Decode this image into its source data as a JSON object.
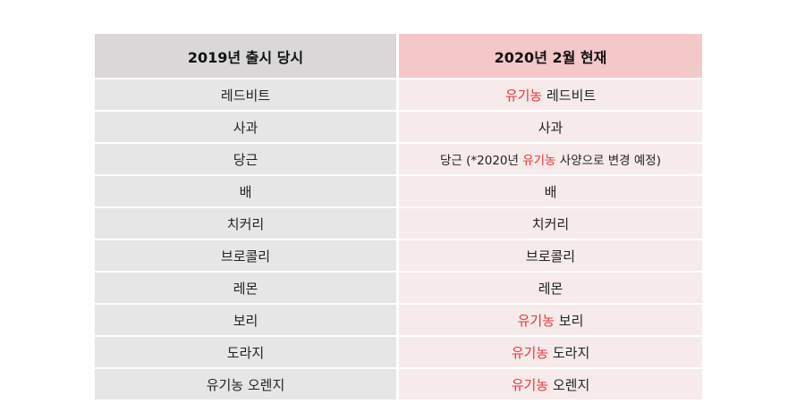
{
  "table": {
    "headers": {
      "left": "2019년 출시 당시",
      "right": "2020년 2월 현재"
    },
    "rows": [
      {
        "left": "레드비트",
        "right_prefix": "",
        "right_organic": "유기농",
        "right_text": " 레드비트",
        "right_suffix": "",
        "right_tail": ""
      },
      {
        "left": "사과",
        "right_prefix": "",
        "right_organic": "",
        "right_text": "사과",
        "right_suffix": "",
        "right_tail": ""
      },
      {
        "left": "당근",
        "right_prefix": "당근 (*2020년 ",
        "right_organic": "유기농",
        "right_text": "",
        "right_suffix": " 사양으로 변경 예정)",
        "right_tail": ""
      },
      {
        "left": "배",
        "right_prefix": "",
        "right_organic": "",
        "right_text": "배",
        "right_suffix": "",
        "right_tail": ""
      },
      {
        "left": "치커리",
        "right_prefix": "",
        "right_organic": "",
        "right_text": "치커리",
        "right_suffix": "",
        "right_tail": ""
      },
      {
        "left": "브로콜리",
        "right_prefix": "",
        "right_organic": "",
        "right_text": "브로콜리",
        "right_suffix": "",
        "right_tail": ""
      },
      {
        "left": "레몬",
        "right_prefix": "",
        "right_organic": "",
        "right_text": "레몬",
        "right_suffix": "",
        "right_tail": ""
      },
      {
        "left": "보리",
        "right_prefix": "",
        "right_organic": "유기농",
        "right_text": " 보리",
        "right_suffix": "",
        "right_tail": ""
      },
      {
        "left": "도라지",
        "right_prefix": "",
        "right_organic": "유기농",
        "right_text": " 도라지",
        "right_suffix": "",
        "right_tail": ""
      },
      {
        "left": "유기농 오렌지",
        "right_prefix": "",
        "right_organic": "유기농",
        "right_text": " 오렌지",
        "right_suffix": "",
        "right_tail": ""
      }
    ]
  },
  "colors": {
    "organic_highlight": "#e8343c",
    "left_header_bg": "#d9d7d8",
    "right_header_bg": "#f4c7c8",
    "left_cell_bg": "#e7e6e6",
    "right_cell_bg": "#f6eaea"
  }
}
